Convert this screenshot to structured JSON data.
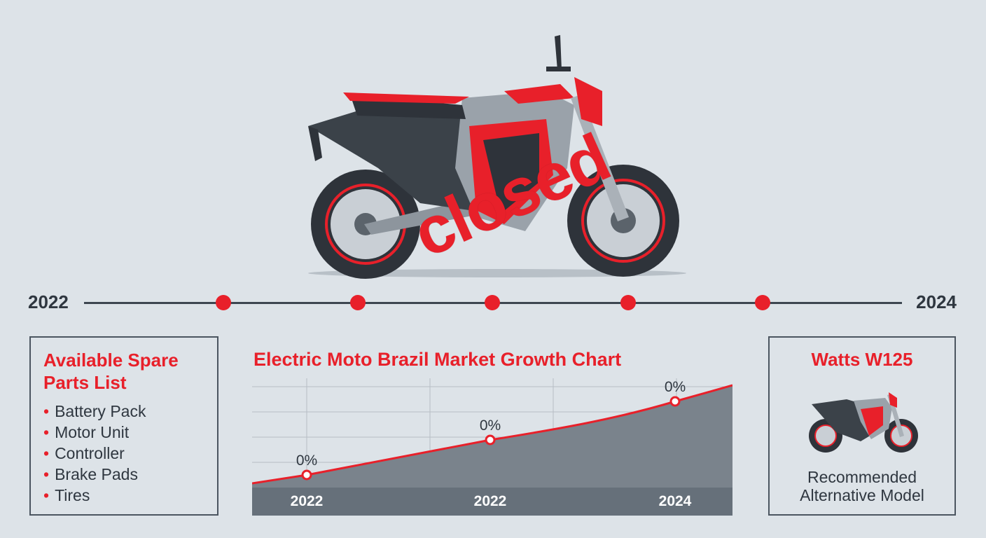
{
  "hero": {
    "stamp_text": "closed"
  },
  "timeline": {
    "start_year": "2022",
    "end_year": "2024",
    "milestones": 5
  },
  "spare_parts": {
    "title": "Available Spare Parts List",
    "items": [
      "Battery Pack",
      "Motor Unit",
      "Controller",
      "Brake Pads",
      "Tires"
    ]
  },
  "chart_data": {
    "type": "area",
    "title": "Electric Moto Brazil Market Growth Chart",
    "categories": [
      "2022",
      "2022",
      "2024"
    ],
    "points": [
      {
        "x_label": "2022",
        "value_label": "0%"
      },
      {
        "x_label": "2022",
        "value_label": "0%"
      },
      {
        "x_label": "2024",
        "value_label": "0%"
      }
    ],
    "grid": true
  },
  "alternative": {
    "title": "Watts W125",
    "caption_line1": "Recommended",
    "caption_line2": "Alternative Model"
  },
  "colors": {
    "accent": "#e8202a",
    "text": "#2f3740",
    "background": "#dde3e8",
    "chart_fill": "#7a838c"
  }
}
